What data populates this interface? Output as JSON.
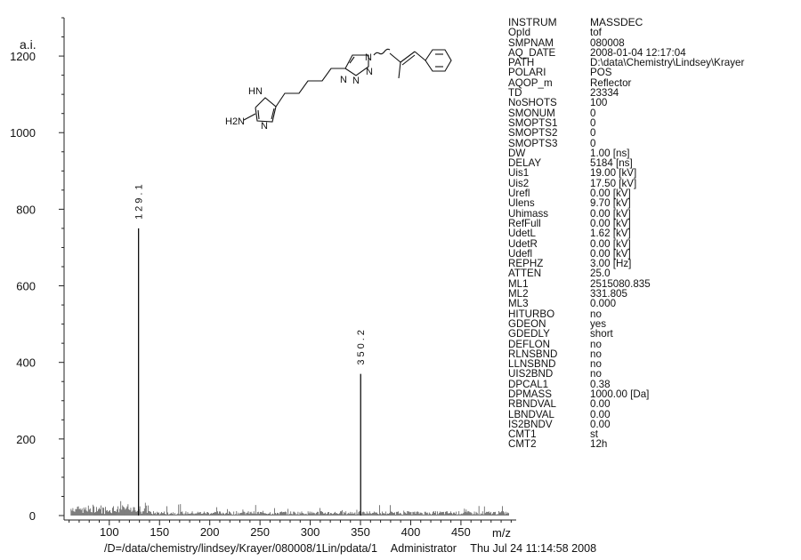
{
  "chart_data": {
    "type": "line",
    "title": "",
    "xlabel": "m/z",
    "ylabel": "a.i.",
    "xlim": [
      55,
      505
    ],
    "ylim": [
      0,
      1300
    ],
    "x_ticks": [
      100,
      150,
      200,
      250,
      300,
      350,
      400,
      450
    ],
    "y_ticks": [
      0,
      200,
      400,
      600,
      800,
      1000,
      1200
    ],
    "grid": false,
    "peaks": [
      {
        "x": 129.1,
        "y": 750,
        "label": "129.1"
      },
      {
        "x": 350.2,
        "y": 370,
        "label": "350.2"
      }
    ]
  },
  "structure": {
    "atoms": [
      "HN",
      "N",
      "H2N",
      "N",
      "N",
      "N",
      "N"
    ]
  },
  "parameters": [
    {
      "key": "INSTRUM",
      "value": "MASSDEC"
    },
    {
      "key": "OpId",
      "value": "tof"
    },
    {
      "key": "SMPNAM",
      "value": "080008"
    },
    {
      "key": "AQ_DATE",
      "value": "2008-01-04 12:17:04"
    },
    {
      "key": "PATH",
      "value": "D:\\data\\Chemistry\\Lindsey\\Krayer"
    },
    {
      "key": "POLARI",
      "value": "POS"
    },
    {
      "key": "AQOP_m",
      "value": "Reflector"
    },
    {
      "key": "TD",
      "value": "23334"
    },
    {
      "key": "NoSHOTS",
      "value": "100"
    },
    {
      "key": "SMONUM",
      "value": "0"
    },
    {
      "key": "SMOPTS1",
      "value": "0"
    },
    {
      "key": "SMOPTS2",
      "value": "0"
    },
    {
      "key": "SMOPTS3",
      "value": "0"
    },
    {
      "key": "DW",
      "value": "1.00 [ns]"
    },
    {
      "key": "DELAY",
      "value": "5184 [ns]"
    },
    {
      "key": "Uis1",
      "value": "19.00 [kV]"
    },
    {
      "key": "Uis2",
      "value": "17.50 [kV]"
    },
    {
      "key": "Urefl",
      "value": "0.00 [kV]"
    },
    {
      "key": "Ulens",
      "value": "9.70 [kV]"
    },
    {
      "key": "Uhimass",
      "value": "0.00 [kV]"
    },
    {
      "key": "RefFull",
      "value": "0.00 [kV]"
    },
    {
      "key": "UdetL",
      "value": "1.62 [kV]"
    },
    {
      "key": "UdetR",
      "value": "0.00 [kV]"
    },
    {
      "key": "Udefl",
      "value": "0.00 [kV]"
    },
    {
      "key": "REPHZ",
      "value": "3.00 [Hz]"
    },
    {
      "key": "ATTEN",
      "value": "25.0"
    },
    {
      "key": "ML1",
      "value": "2515080.835"
    },
    {
      "key": "ML2",
      "value": "331.805"
    },
    {
      "key": "ML3",
      "value": "0.000"
    },
    {
      "key": "HITURBO",
      "value": "no"
    },
    {
      "key": "GDEON",
      "value": "yes"
    },
    {
      "key": "GDEDLY",
      "value": "short"
    },
    {
      "key": "DEFLON",
      "value": "no"
    },
    {
      "key": "RLNSBND",
      "value": "no"
    },
    {
      "key": "LLNSBND",
      "value": "no"
    },
    {
      "key": "UIS2BND",
      "value": "no"
    },
    {
      "key": "DPCAL1",
      "value": "0.38"
    },
    {
      "key": "DPMASS",
      "value": "1000.00 [Da]"
    },
    {
      "key": "RBNDVAL",
      "value": "0.00"
    },
    {
      "key": "LBNDVAL",
      "value": "0.00"
    },
    {
      "key": "IS2BNDV",
      "value": "0.00"
    },
    {
      "key": "CMT1",
      "value": "st"
    },
    {
      "key": "CMT2",
      "value": "12h"
    }
  ],
  "footer": {
    "path": "/D=/data/chemistry/lindsey/Krayer/080008/1Lin/pdata/1",
    "user": "Administrator",
    "date": "Thu Jul 24 11:14:58 2008"
  }
}
